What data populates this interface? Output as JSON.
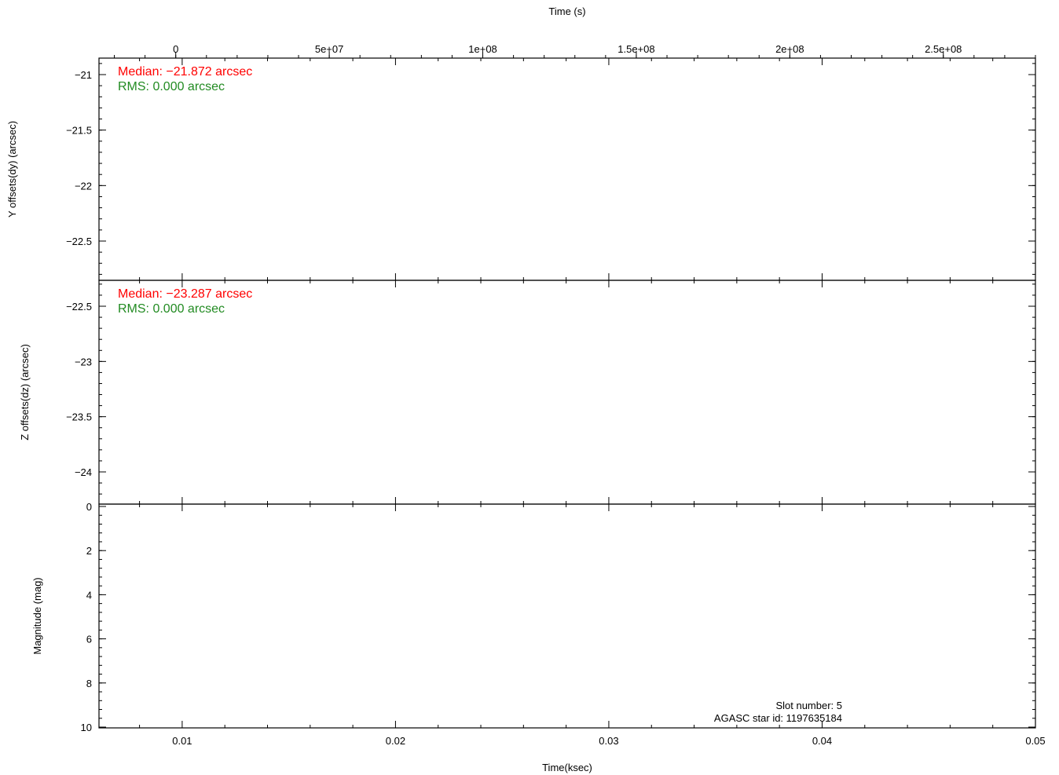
{
  "chart_data": {
    "type": "line",
    "top_axis": {
      "label": "Time (s)",
      "ticks": [
        0,
        50000000,
        100000000,
        150000000,
        200000000,
        250000000
      ],
      "tick_labels": [
        "0",
        "5e+07",
        "1e+08",
        "1.5e+08",
        "2e+08",
        "2.5e+08"
      ],
      "range": [
        -25000000,
        280000000
      ]
    },
    "bottom_axis": {
      "label": "Time(ksec)",
      "ticks": [
        0.01,
        0.02,
        0.03,
        0.04,
        0.05
      ],
      "tick_labels": [
        "0.01",
        "0.02",
        "0.03",
        "0.04",
        "0.05"
      ],
      "range": [
        0.0061,
        0.05
      ]
    },
    "panels": [
      {
        "ylabel": "Y offsets(dy) (arcsec)",
        "ylim": [
          -21.0,
          -23.5
        ],
        "y_ticks": [
          -21,
          -21.5,
          -22,
          -22.5
        ],
        "y_tick_labels": [
          "−21",
          "−21.5",
          "−22",
          "−22.5"
        ],
        "annotations": [
          {
            "text": "Median: −21.872 arcsec",
            "color": "#ff0000"
          },
          {
            "text": "RMS: 0.000 arcsec",
            "color": "#228b22"
          }
        ],
        "series": []
      },
      {
        "ylabel": "Z offsets(dz) (arcsec)",
        "ylim": [
          -22.35,
          -24.25
        ],
        "y_ticks": [
          -22.5,
          -23,
          -23.5,
          -24
        ],
        "y_tick_labels": [
          "−22.5",
          "−23",
          "−23.5",
          "−24"
        ],
        "annotations": [
          {
            "text": "Median: −23.287 arcsec",
            "color": "#ff0000"
          },
          {
            "text": "RMS: 0.000 arcsec",
            "color": "#228b22"
          }
        ],
        "series": []
      },
      {
        "ylabel": "Magnitude (mag)",
        "ylim": [
          0,
          10
        ],
        "y_ticks": [
          0,
          2,
          4,
          6,
          8,
          10
        ],
        "y_tick_labels": [
          "0",
          "2",
          "4",
          "6",
          "8",
          "10"
        ],
        "annotations": [],
        "series": []
      }
    ],
    "notes": [
      "Slot number: 5",
      "AGASC star id: 1197635184"
    ]
  }
}
